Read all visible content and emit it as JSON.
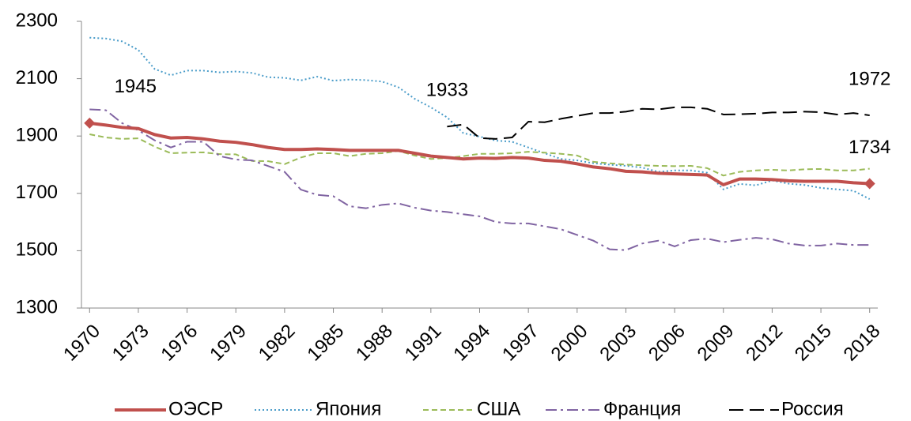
{
  "chart_data": {
    "type": "line",
    "x": [
      1970,
      1971,
      1972,
      1973,
      1974,
      1975,
      1976,
      1977,
      1978,
      1979,
      1980,
      1981,
      1982,
      1983,
      1984,
      1985,
      1986,
      1987,
      1988,
      1989,
      1990,
      1991,
      1992,
      1993,
      1994,
      1995,
      1996,
      1997,
      1998,
      1999,
      2000,
      2001,
      2002,
      2003,
      2004,
      2005,
      2006,
      2007,
      2008,
      2009,
      2010,
      2011,
      2012,
      2013,
      2014,
      2015,
      2016,
      2017,
      2018
    ],
    "xlim": [
      1969.5,
      2018.5
    ],
    "xticks": [
      1970,
      1973,
      1976,
      1979,
      1982,
      1985,
      1988,
      1991,
      1994,
      1997,
      2000,
      2003,
      2006,
      2009,
      2012,
      2015,
      2018
    ],
    "ylim": [
      1300,
      2300
    ],
    "yticks": [
      1300,
      1500,
      1700,
      1900,
      2100,
      2300
    ],
    "grid": false,
    "legend": "bottom",
    "series": [
      {
        "name": "ОЭСР",
        "color": "#c0504d",
        "width": 4,
        "dash": "solid",
        "marker": "diamond",
        "values": [
          1945,
          1938,
          1930,
          1926,
          1905,
          1893,
          1895,
          1890,
          1882,
          1878,
          1870,
          1860,
          1853,
          1853,
          1855,
          1853,
          1850,
          1850,
          1850,
          1850,
          1840,
          1830,
          1825,
          1820,
          1823,
          1822,
          1825,
          1823,
          1815,
          1812,
          1803,
          1792,
          1786,
          1777,
          1775,
          1770,
          1768,
          1766,
          1764,
          1730,
          1750,
          1750,
          1748,
          1744,
          1742,
          1742,
          1742,
          1737,
          1734
        ],
        "value_labels": [
          "1945",
          null,
          null,
          null,
          null,
          null,
          null,
          null,
          null,
          null,
          null,
          null,
          null,
          null,
          null,
          null,
          null,
          null,
          null,
          null,
          null,
          null,
          null,
          null,
          null,
          null,
          null,
          null,
          null,
          null,
          null,
          null,
          null,
          null,
          null,
          null,
          null,
          null,
          null,
          null,
          null,
          null,
          null,
          null,
          null,
          null,
          null,
          null,
          "1734"
        ]
      },
      {
        "name": "Япония",
        "color": "#4a9cc9",
        "width": 2,
        "dash": "dot",
        "values": [
          2243,
          2240,
          2230,
          2200,
          2134,
          2112,
          2128,
          2128,
          2122,
          2125,
          2120,
          2105,
          2103,
          2094,
          2107,
          2093,
          2097,
          2095,
          2090,
          2070,
          2030,
          2000,
          1965,
          1910,
          1898,
          1884,
          1880,
          1860,
          1840,
          1820,
          1815,
          1805,
          1800,
          1796,
          1790,
          1775,
          1780,
          1780,
          1772,
          1714,
          1733,
          1728,
          1745,
          1734,
          1729,
          1719,
          1714,
          1709,
          1680
        ]
      },
      {
        "name": "США",
        "color": "#9bbb59",
        "width": 2,
        "dash": "dash",
        "values": [
          1906,
          1895,
          1890,
          1892,
          1863,
          1840,
          1842,
          1843,
          1837,
          1836,
          1813,
          1812,
          1802,
          1825,
          1840,
          1840,
          1830,
          1838,
          1840,
          1848,
          1832,
          1820,
          1823,
          1830,
          1838,
          1838,
          1840,
          1845,
          1842,
          1838,
          1832,
          1810,
          1805,
          1800,
          1798,
          1796,
          1795,
          1796,
          1788,
          1762,
          1775,
          1780,
          1782,
          1780,
          1784,
          1785,
          1780,
          1780,
          1786
        ]
      },
      {
        "name": "Франция",
        "color": "#8064a2",
        "width": 2,
        "dash": "dashdot",
        "values": [
          1993,
          1990,
          1945,
          1920,
          1885,
          1860,
          1880,
          1880,
          1830,
          1818,
          1815,
          1795,
          1775,
          1713,
          1695,
          1690,
          1655,
          1648,
          1660,
          1665,
          1650,
          1640,
          1635,
          1627,
          1620,
          1600,
          1595,
          1595,
          1585,
          1575,
          1555,
          1535,
          1505,
          1502,
          1525,
          1535,
          1515,
          1537,
          1542,
          1530,
          1538,
          1545,
          1540,
          1525,
          1518,
          1518,
          1525,
          1520,
          1520
        ]
      },
      {
        "name": "Россия",
        "color": "#000000",
        "width": 2,
        "dash": "longdash",
        "values": [
          null,
          null,
          null,
          null,
          null,
          null,
          null,
          null,
          null,
          null,
          null,
          null,
          null,
          null,
          null,
          null,
          null,
          null,
          null,
          null,
          null,
          null,
          1933,
          1940,
          1893,
          1890,
          1895,
          1950,
          1948,
          1960,
          1970,
          1980,
          1980,
          1985,
          1995,
          1993,
          2000,
          2000,
          1995,
          1975,
          1976,
          1978,
          1982,
          1982,
          1985,
          1983,
          1975,
          1980,
          1972
        ],
        "value_labels": [
          null,
          null,
          null,
          null,
          null,
          null,
          null,
          null,
          null,
          null,
          null,
          null,
          null,
          null,
          null,
          null,
          null,
          null,
          null,
          null,
          null,
          null,
          "1933",
          null,
          null,
          null,
          null,
          null,
          null,
          null,
          null,
          null,
          null,
          null,
          null,
          null,
          null,
          null,
          null,
          null,
          null,
          null,
          null,
          null,
          null,
          null,
          null,
          null,
          "1972"
        ]
      }
    ]
  }
}
